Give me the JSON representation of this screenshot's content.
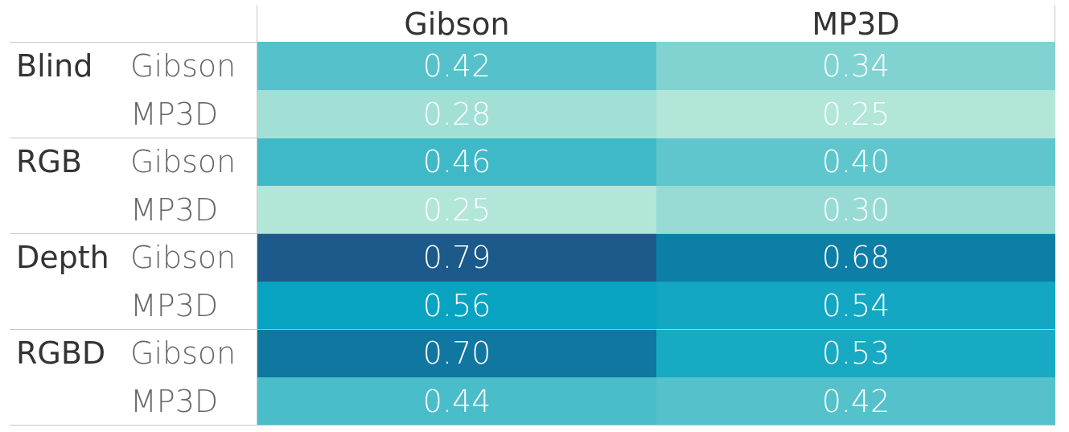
{
  "chart_data": {
    "type": "heatmap",
    "columns": [
      "Gibson",
      "MP3D"
    ],
    "row_groups": [
      {
        "label": "Blind",
        "rows": [
          {
            "label": "Gibson",
            "values": [
              0.42,
              0.34
            ],
            "text": [
              "0.42",
              "0.34"
            ]
          },
          {
            "label": "MP3D",
            "values": [
              0.28,
              0.25
            ],
            "text": [
              "0.28",
              "0.25"
            ]
          }
        ]
      },
      {
        "label": "RGB",
        "rows": [
          {
            "label": "Gibson",
            "values": [
              0.46,
              0.4
            ],
            "text": [
              "0.46",
              "0.40"
            ]
          },
          {
            "label": "MP3D",
            "values": [
              0.25,
              0.3
            ],
            "text": [
              "0.25",
              "0.30"
            ]
          }
        ]
      },
      {
        "label": "Depth",
        "rows": [
          {
            "label": "Gibson",
            "values": [
              0.79,
              0.68
            ],
            "text": [
              "0.79",
              "0.68"
            ]
          },
          {
            "label": "MP3D",
            "values": [
              0.56,
              0.54
            ],
            "text": [
              "0.56",
              "0.54"
            ]
          }
        ]
      },
      {
        "label": "RGBD",
        "rows": [
          {
            "label": "Gibson",
            "values": [
              0.7,
              0.53
            ],
            "text": [
              "0.70",
              "0.53"
            ]
          },
          {
            "label": "MP3D",
            "values": [
              0.44,
              0.42
            ],
            "text": [
              "0.44",
              "0.42"
            ]
          }
        ]
      }
    ],
    "color_scale": [
      "#b2e6d8",
      "#00a0c0",
      "#1b5a8a"
    ],
    "value_range": [
      0.25,
      0.79
    ]
  }
}
